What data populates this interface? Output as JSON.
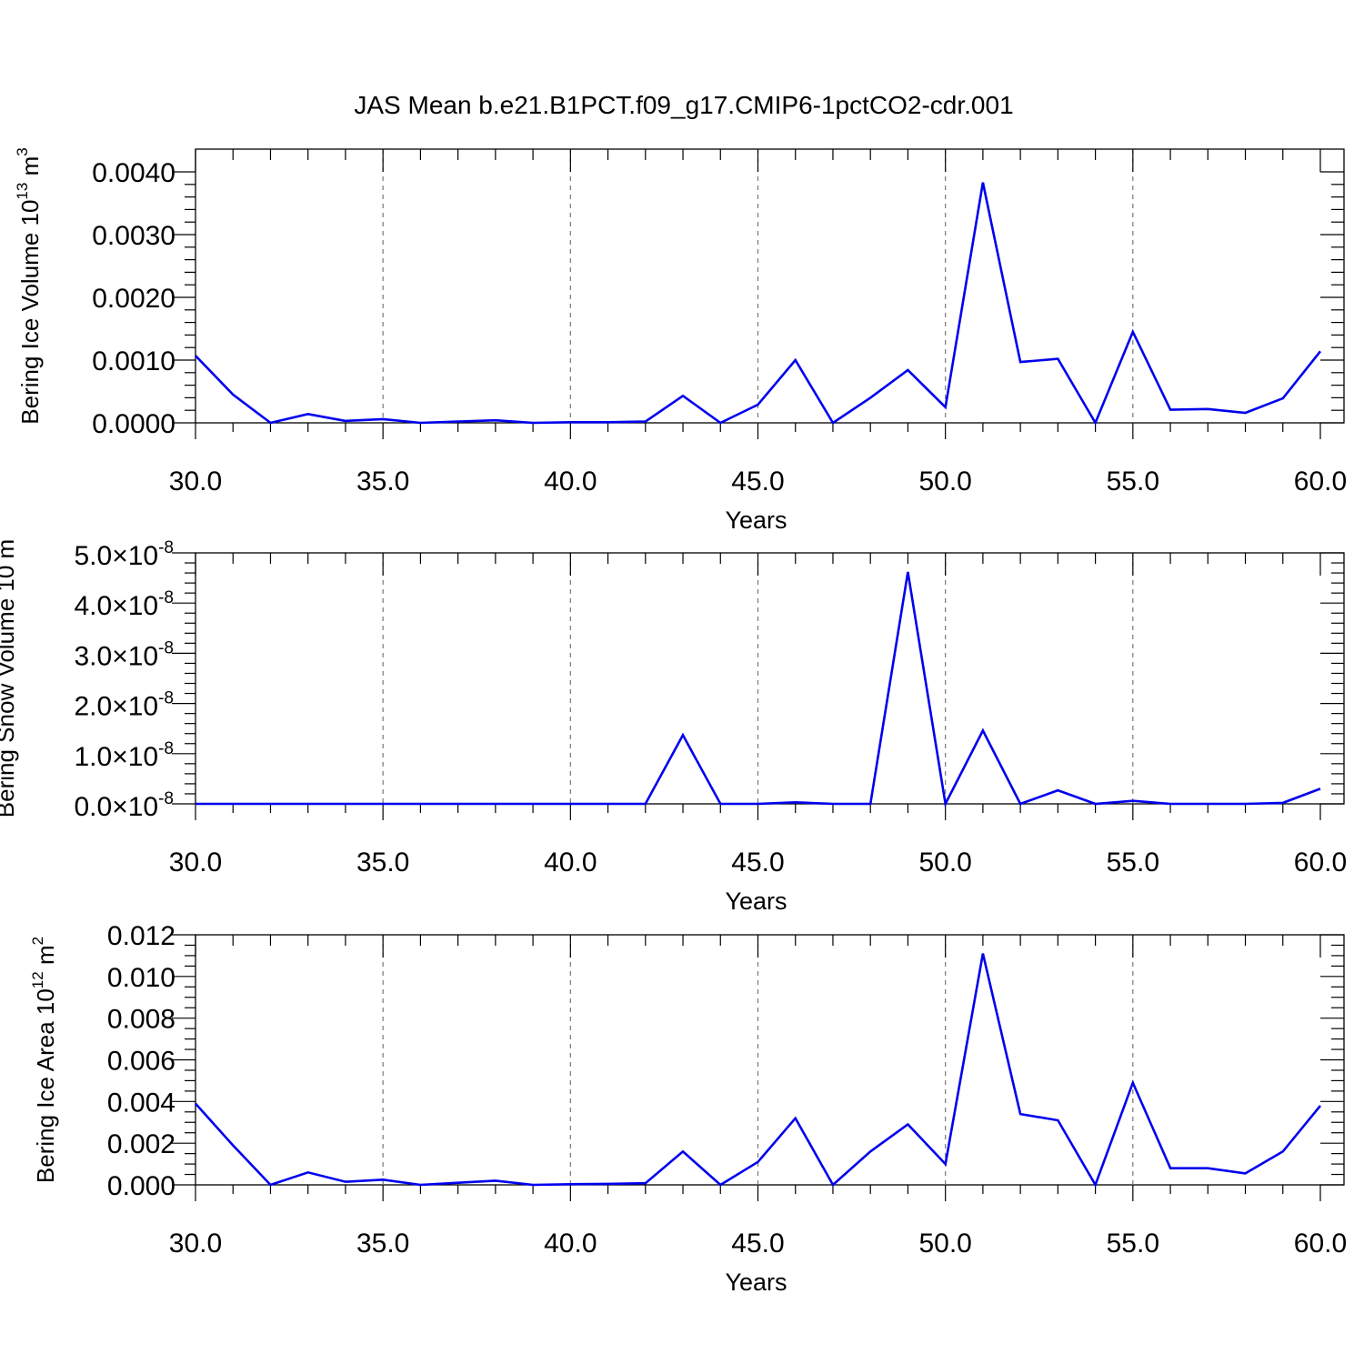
{
  "title": "JAS Mean b.e21.B1PCT.f09_g17.CMIP6-1pctCO2-cdr.001",
  "colors": {
    "series": "#0000ee",
    "grid": "#777777",
    "axis": "#000000"
  },
  "chart_data": [
    {
      "type": "line",
      "xlabel": "Years",
      "ylabel": {
        "text": "Bering Ice Volume 10",
        "exp": "13",
        "unit": "m",
        "unit_exp": "3"
      },
      "xlim": [
        30,
        60
      ],
      "ylim": [
        0,
        0.004
      ],
      "xticks": [
        30,
        35,
        40,
        45,
        50,
        55,
        60
      ],
      "xtick_labels": [
        "30.0",
        "35.0",
        "40.0",
        "45.0",
        "50.0",
        "55.0",
        "60.0"
      ],
      "yticks": [
        0,
        0.001,
        0.002,
        0.003,
        0.004
      ],
      "ytick_labels": [
        "0.0000",
        "0.0010",
        "0.0020",
        "0.0030",
        "0.0040"
      ],
      "grid": "vertical-dashed",
      "x": [
        30,
        31,
        32,
        33,
        34,
        35,
        36,
        37,
        38,
        39,
        40,
        41,
        42,
        43,
        44,
        45,
        46,
        47,
        48,
        49,
        50,
        51,
        52,
        53,
        54,
        55,
        56,
        57,
        58,
        59,
        60
      ],
      "values": [
        0.00107,
        0.00045,
        0.0,
        0.00014,
        3e-05,
        6e-05,
        0.0,
        2e-05,
        4e-05,
        0.0,
        1e-05,
        1e-05,
        2e-05,
        0.00043,
        0.0,
        0.00029,
        0.001,
        0.0,
        0.0004,
        0.00084,
        0.00025,
        0.00383,
        0.00097,
        0.00102,
        0.0,
        0.00145,
        0.00021,
        0.00022,
        0.00016,
        0.00039,
        0.00114
      ]
    },
    {
      "type": "line",
      "xlabel": "Years",
      "ylabel": {
        "text": "Bering Snow Volume 10",
        "exp": "",
        "unit": "m",
        "unit_exp": ""
      },
      "xlim": [
        30,
        60
      ],
      "ylim": [
        0,
        5e-08
      ],
      "xticks": [
        30,
        35,
        40,
        45,
        50,
        55,
        60
      ],
      "xtick_labels": [
        "30.0",
        "35.0",
        "40.0",
        "45.0",
        "50.0",
        "55.0",
        "60.0"
      ],
      "yticks": [
        0,
        1e-08,
        2e-08,
        3e-08,
        4e-08,
        5e-08
      ],
      "ytick_labels": [
        {
          "mant": "0.0",
          "times": "×10",
          "exp": "-8"
        },
        {
          "mant": "1.0",
          "times": "×10",
          "exp": "-8"
        },
        {
          "mant": "2.0",
          "times": "×10",
          "exp": "-8"
        },
        {
          "mant": "3.0",
          "times": "×10",
          "exp": "-8"
        },
        {
          "mant": "4.0",
          "times": "×10",
          "exp": "-8"
        },
        {
          "mant": "5.0",
          "times": "×10",
          "exp": "-8"
        }
      ],
      "grid": "vertical-dashed",
      "x": [
        30,
        31,
        32,
        33,
        34,
        35,
        36,
        37,
        38,
        39,
        40,
        41,
        42,
        43,
        44,
        45,
        46,
        47,
        48,
        49,
        50,
        51,
        52,
        53,
        54,
        55,
        56,
        57,
        58,
        59,
        60
      ],
      "values": [
        0,
        0,
        0,
        0,
        0,
        0,
        0,
        0,
        0,
        0,
        0,
        0,
        0,
        1.37e-08,
        0,
        0,
        3e-10,
        0,
        0,
        4.62e-08,
        0,
        1.46e-08,
        0,
        2.7e-09,
        0,
        6e-10,
        0,
        0,
        0,
        2e-10,
        3e-09
      ]
    },
    {
      "type": "line",
      "xlabel": "Years",
      "ylabel": {
        "text": "Bering Ice Area 10",
        "exp": "12",
        "unit": "m",
        "unit_exp": "2"
      },
      "xlim": [
        30,
        60
      ],
      "ylim": [
        0,
        0.012
      ],
      "xticks": [
        30,
        35,
        40,
        45,
        50,
        55,
        60
      ],
      "xtick_labels": [
        "30.0",
        "35.0",
        "40.0",
        "45.0",
        "50.0",
        "55.0",
        "60.0"
      ],
      "yticks": [
        0,
        0.002,
        0.004,
        0.006,
        0.008,
        0.01,
        0.012
      ],
      "ytick_labels": [
        "0.000",
        "0.002",
        "0.004",
        "0.006",
        "0.008",
        "0.010",
        "0.012"
      ],
      "grid": "vertical-dashed",
      "x": [
        30,
        31,
        32,
        33,
        34,
        35,
        36,
        37,
        38,
        39,
        40,
        41,
        42,
        43,
        44,
        45,
        46,
        47,
        48,
        49,
        50,
        51,
        52,
        53,
        54,
        55,
        56,
        57,
        58,
        59,
        60
      ],
      "values": [
        0.0039,
        0.0019,
        0.0,
        0.0006,
        0.00015,
        0.00025,
        0.0,
        0.0001,
        0.0002,
        0.0,
        3e-05,
        5e-05,
        8e-05,
        0.0016,
        0.0,
        0.0011,
        0.0032,
        0.0,
        0.0016,
        0.0029,
        0.001,
        0.0111,
        0.0034,
        0.0031,
        0.0,
        0.0049,
        0.0008,
        0.0008,
        0.00055,
        0.0016,
        0.0038
      ]
    }
  ]
}
